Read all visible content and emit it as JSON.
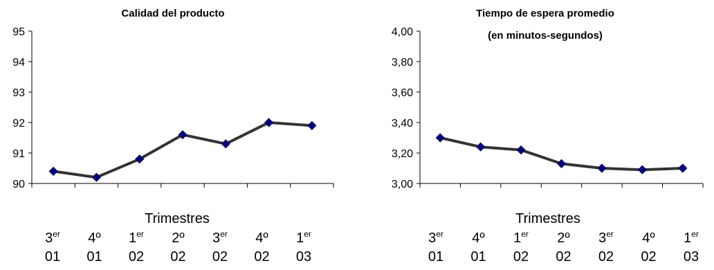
{
  "chart_data": [
    {
      "type": "line",
      "title": "Calidad del producto",
      "subtitle": "",
      "xlabel": "Trimestres",
      "ylabel": "",
      "ylim": [
        90,
        95
      ],
      "yticks": [
        "95",
        "94",
        "93",
        "92",
        "91",
        "90"
      ],
      "grid": false,
      "categories": [
        {
          "main": "3",
          "sup": "er",
          "year": "01"
        },
        {
          "main": "4º",
          "sup": "",
          "year": "01"
        },
        {
          "main": "1",
          "sup": "er",
          "year": "02"
        },
        {
          "main": "2º",
          "sup": "",
          "year": "02"
        },
        {
          "main": "3",
          "sup": "er",
          "year": "02"
        },
        {
          "main": "4º",
          "sup": "",
          "year": "02"
        },
        {
          "main": "1",
          "sup": "er",
          "year": "03"
        }
      ],
      "series": [
        {
          "values": [
            90.4,
            90.2,
            90.8,
            91.6,
            91.3,
            92.0,
            91.9
          ]
        }
      ],
      "colors": {
        "line": "#333333",
        "marker": "#000080",
        "axis": "#000000"
      }
    },
    {
      "type": "line",
      "title": "Tiempo de espera promedio",
      "subtitle": "(en minutos-segundos)",
      "xlabel": "Trimestres",
      "ylabel": "",
      "ylim": [
        3.0,
        4.0
      ],
      "yticks": [
        "4,00",
        "3,80",
        "3,60",
        "3,40",
        "3,20",
        "3,00"
      ],
      "grid": false,
      "categories": [
        {
          "main": "3",
          "sup": "er",
          "year": "01"
        },
        {
          "main": "4º",
          "sup": "",
          "year": "01"
        },
        {
          "main": "1",
          "sup": "er",
          "year": "02"
        },
        {
          "main": "2º",
          "sup": "",
          "year": "02"
        },
        {
          "main": "3",
          "sup": "er",
          "year": "02"
        },
        {
          "main": "4º",
          "sup": "",
          "year": "02"
        },
        {
          "main": "1",
          "sup": "er",
          "year": "03"
        }
      ],
      "series": [
        {
          "values": [
            3.3,
            3.24,
            3.22,
            3.13,
            3.1,
            3.09,
            3.1
          ]
        }
      ],
      "colors": {
        "line": "#333333",
        "marker": "#000080",
        "axis": "#000000"
      }
    }
  ]
}
